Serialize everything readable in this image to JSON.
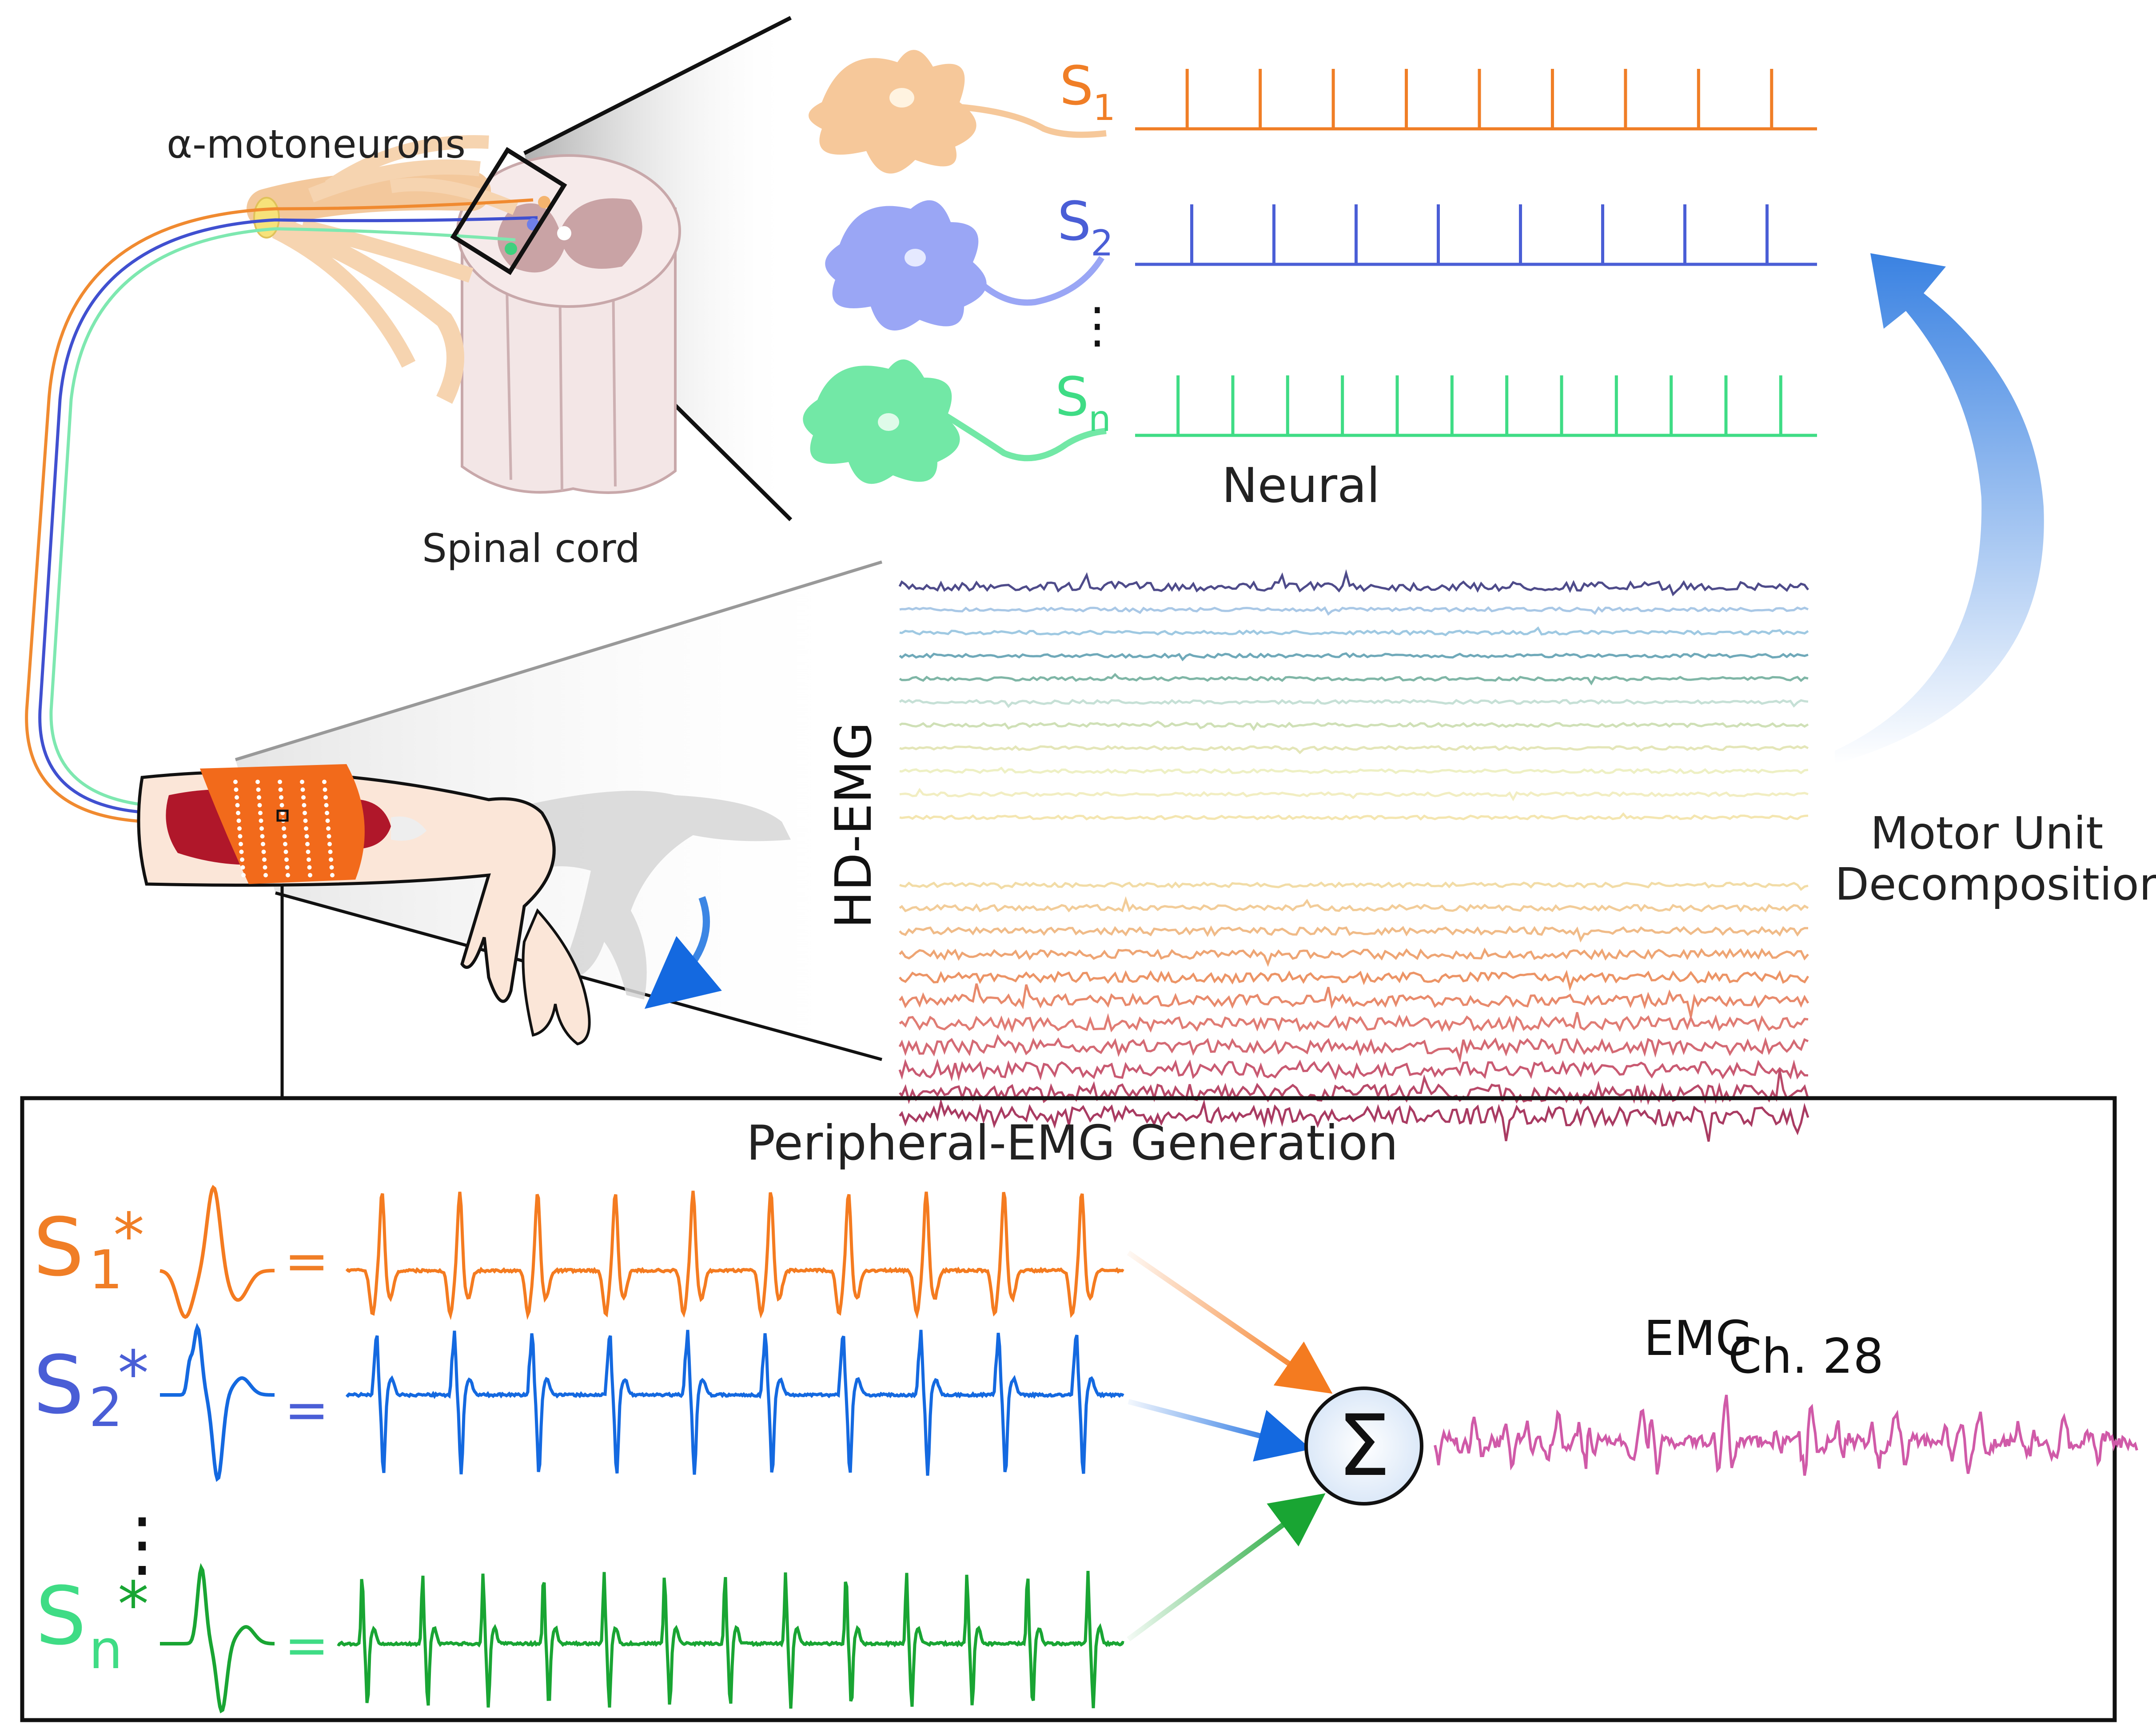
{
  "labels": {
    "motoneurons": "α-motoneurons",
    "spinal_cord": "Spinal cord",
    "neural": "Neural",
    "hd_emg": "HD-EMG",
    "decomposition_line1": "Motor Unit",
    "decomposition_line2": "Decomposition",
    "peripheral_title": "Peripheral-EMG Generation",
    "emg_channel_main": "EMG",
    "emg_channel_sub": "Ch. 28",
    "sigma": "Σ",
    "equals": "=",
    "star": "*",
    "vdots": "⋮"
  },
  "spike_trains": [
    {
      "name": "S",
      "subscript": "1",
      "color": "#f07e26"
    },
    {
      "name": "S",
      "subscript": "2",
      "color": "#4a5ed6"
    },
    {
      "name": "S",
      "subscript": "n",
      "color": "#3fdc85"
    }
  ],
  "conv_rows": [
    {
      "name": "S",
      "subscript": "1",
      "color": "#f47b20",
      "name_color": "#f07e26"
    },
    {
      "name": "S",
      "subscript": "2",
      "color": "#1469e0",
      "name_color": "#4a5ed6"
    },
    {
      "name": "S",
      "subscript": "n",
      "color": "#19a533",
      "name_color": "#3fdc85"
    }
  ],
  "colors": {
    "muscle_patch": "#f26a1b",
    "skin": "#fbe6d8",
    "neuron_orange": "#f6c89a",
    "neuron_blue": "#9aa6f5",
    "neuron_green": "#72e8a6",
    "arrow_blue": "#3c86e4",
    "emg_sum": "#d05aa8"
  }
}
